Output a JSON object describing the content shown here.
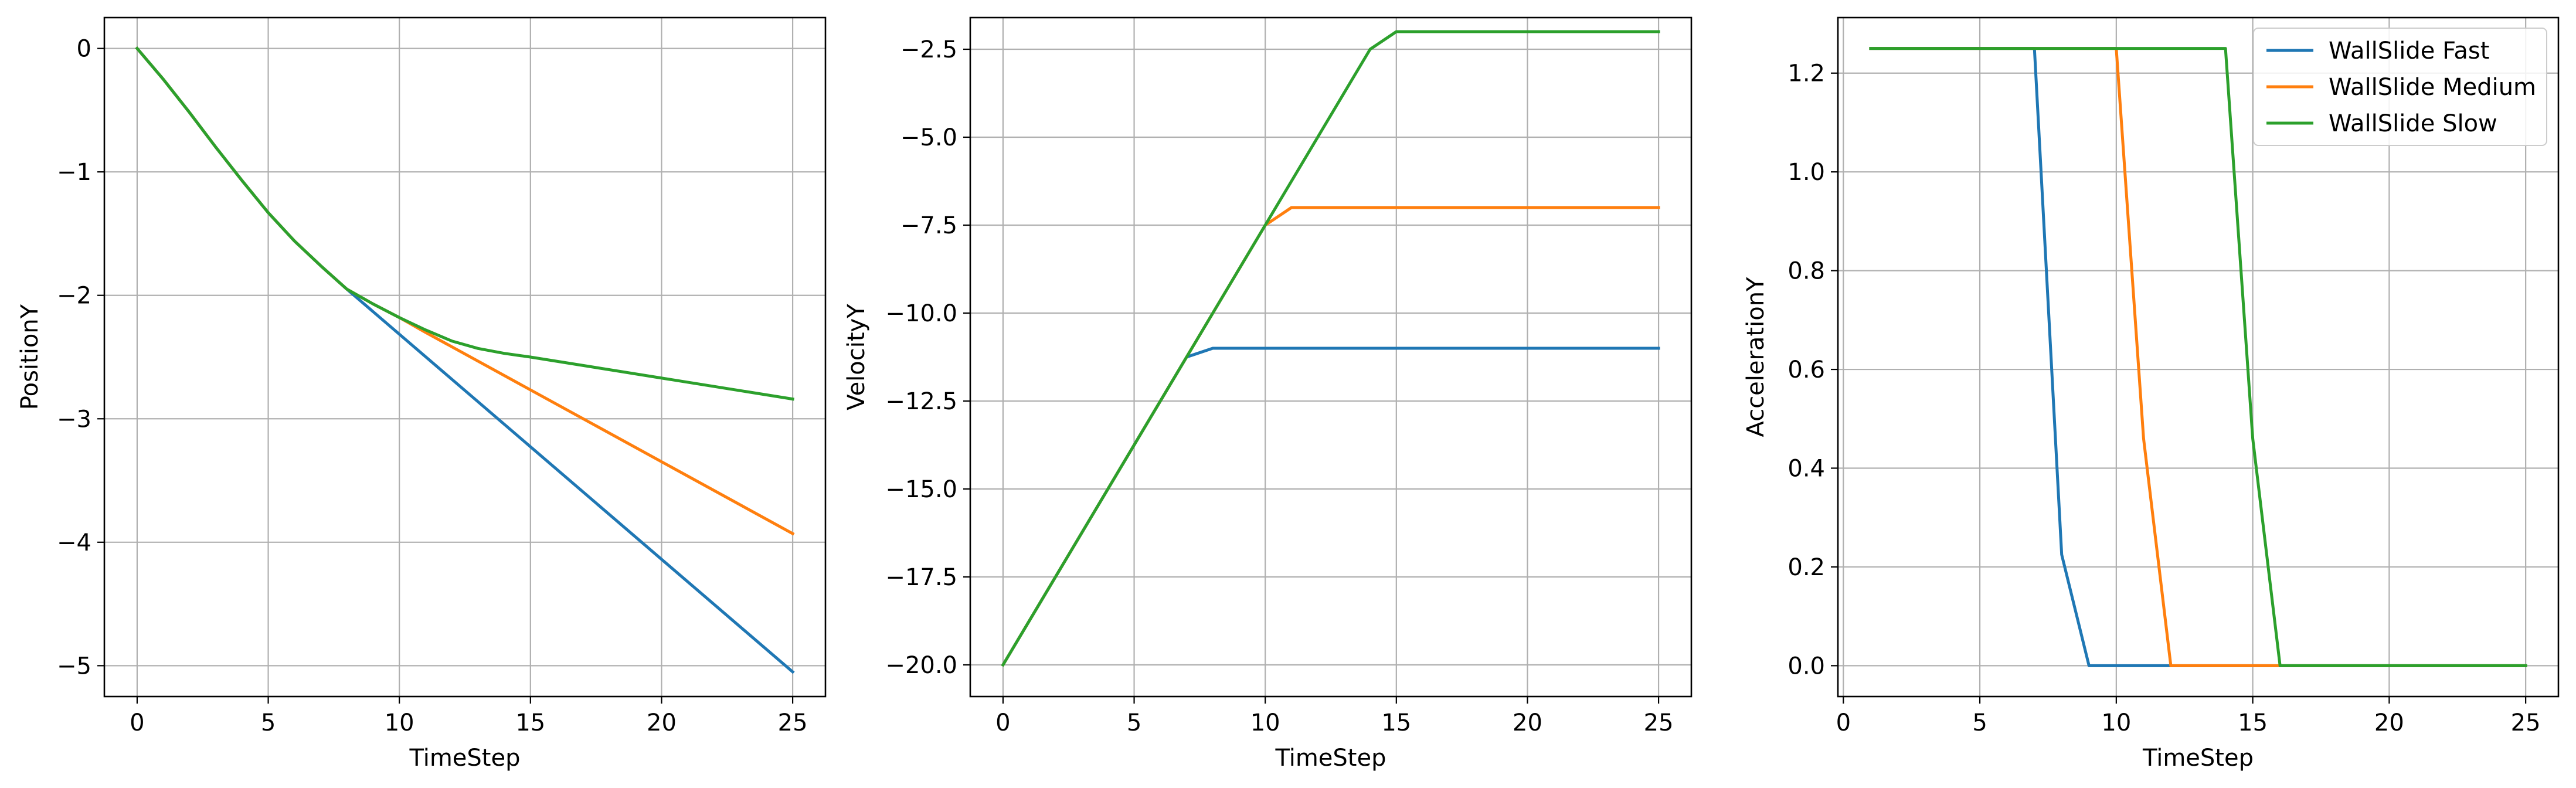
{
  "colors": {
    "fast": "#1f77b4",
    "medium": "#ff7f0e",
    "slow": "#2ca02c",
    "grid": "#b0b0b0",
    "axes": "#000000"
  },
  "chart_data": [
    {
      "type": "line",
      "xlabel": "TimeStep",
      "ylabel": "PositionY",
      "xlim": [
        -1.25,
        26.25
      ],
      "ylim": [
        -5.25,
        0.25
      ],
      "xticks": [
        0,
        5,
        10,
        15,
        20,
        25
      ],
      "yticks": [
        0,
        -1,
        -2,
        -3,
        -4,
        -5
      ],
      "xtick_labels": [
        "0",
        "5",
        "10",
        "15",
        "20",
        "25"
      ],
      "ytick_labels": [
        "0",
        "−1",
        "−2",
        "−3",
        "−4",
        "−5"
      ],
      "grid": true,
      "series": [
        {
          "name": "WallSlide Fast",
          "color_key": "fast",
          "x": [
            0,
            1,
            2,
            3,
            4,
            5,
            6,
            7,
            8,
            25
          ],
          "y": [
            0,
            -0.25,
            -0.52,
            -0.8,
            -1.07,
            -1.33,
            -1.56,
            -1.76,
            -1.95,
            -5.05
          ]
        },
        {
          "name": "WallSlide Medium",
          "color_key": "medium",
          "x": [
            0,
            1,
            2,
            3,
            4,
            5,
            6,
            7,
            8,
            9,
            10,
            11,
            25
          ],
          "y": [
            0,
            -0.25,
            -0.52,
            -0.8,
            -1.07,
            -1.33,
            -1.56,
            -1.76,
            -1.95,
            -2.07,
            -2.18,
            -2.3,
            -3.93
          ]
        },
        {
          "name": "WallSlide Slow",
          "color_key": "slow",
          "x": [
            0,
            1,
            2,
            3,
            4,
            5,
            6,
            7,
            8,
            9,
            10,
            11,
            12,
            13,
            14,
            15,
            25
          ],
          "y": [
            0,
            -0.25,
            -0.52,
            -0.8,
            -1.07,
            -1.33,
            -1.56,
            -1.76,
            -1.95,
            -2.07,
            -2.18,
            -2.28,
            -2.37,
            -2.43,
            -2.47,
            -2.5,
            -2.84
          ]
        }
      ]
    },
    {
      "type": "line",
      "xlabel": "TimeStep",
      "ylabel": "VelocityY",
      "xlim": [
        -1.25,
        26.25
      ],
      "ylim": [
        -20.9,
        -1.6
      ],
      "xticks": [
        0,
        5,
        10,
        15,
        20,
        25
      ],
      "yticks": [
        -2.5,
        -5.0,
        -7.5,
        -10.0,
        -12.5,
        -15.0,
        -17.5,
        -20.0
      ],
      "xtick_labels": [
        "0",
        "5",
        "10",
        "15",
        "20",
        "25"
      ],
      "ytick_labels": [
        "−2.5",
        "−5.0",
        "−7.5",
        "−10.0",
        "−12.5",
        "−15.0",
        "−17.5",
        "−20.0"
      ],
      "grid": true,
      "series": [
        {
          "name": "WallSlide Fast",
          "color_key": "fast",
          "x": [
            0,
            7,
            8,
            25
          ],
          "y": [
            -20.0,
            -11.25,
            -11.0,
            -11.0
          ]
        },
        {
          "name": "WallSlide Medium",
          "color_key": "medium",
          "x": [
            0,
            10,
            11,
            25
          ],
          "y": [
            -20.0,
            -7.5,
            -7.0,
            -7.0
          ]
        },
        {
          "name": "WallSlide Slow",
          "color_key": "slow",
          "x": [
            0,
            14,
            15,
            25
          ],
          "y": [
            -20.0,
            -2.5,
            -2.0,
            -2.0
          ]
        }
      ]
    },
    {
      "type": "line",
      "xlabel": "TimeStep",
      "ylabel": "AccelerationY",
      "xlim": [
        -0.2,
        26.2
      ],
      "ylim": [
        -0.0625,
        1.3125
      ],
      "xticks": [
        0,
        5,
        10,
        15,
        20,
        25
      ],
      "yticks": [
        0.0,
        0.2,
        0.4,
        0.6,
        0.8,
        1.0,
        1.2
      ],
      "xtick_labels": [
        "0",
        "5",
        "10",
        "15",
        "20",
        "25"
      ],
      "ytick_labels": [
        "0.0",
        "0.2",
        "0.4",
        "0.6",
        "0.8",
        "1.0",
        "1.2"
      ],
      "grid": true,
      "legend": "top-right",
      "series": [
        {
          "name": "WallSlide Fast",
          "color_key": "fast",
          "x": [
            1,
            7,
            8,
            9,
            25
          ],
          "y": [
            1.25,
            1.25,
            0.225,
            0.0,
            0.0
          ]
        },
        {
          "name": "WallSlide Medium",
          "color_key": "medium",
          "x": [
            1,
            10,
            11,
            12,
            25
          ],
          "y": [
            1.25,
            1.25,
            0.46,
            0.0,
            0.0
          ]
        },
        {
          "name": "WallSlide Slow",
          "color_key": "slow",
          "x": [
            1,
            14,
            15,
            16,
            25
          ],
          "y": [
            1.25,
            1.25,
            0.46,
            0.0,
            0.0
          ]
        }
      ]
    }
  ]
}
